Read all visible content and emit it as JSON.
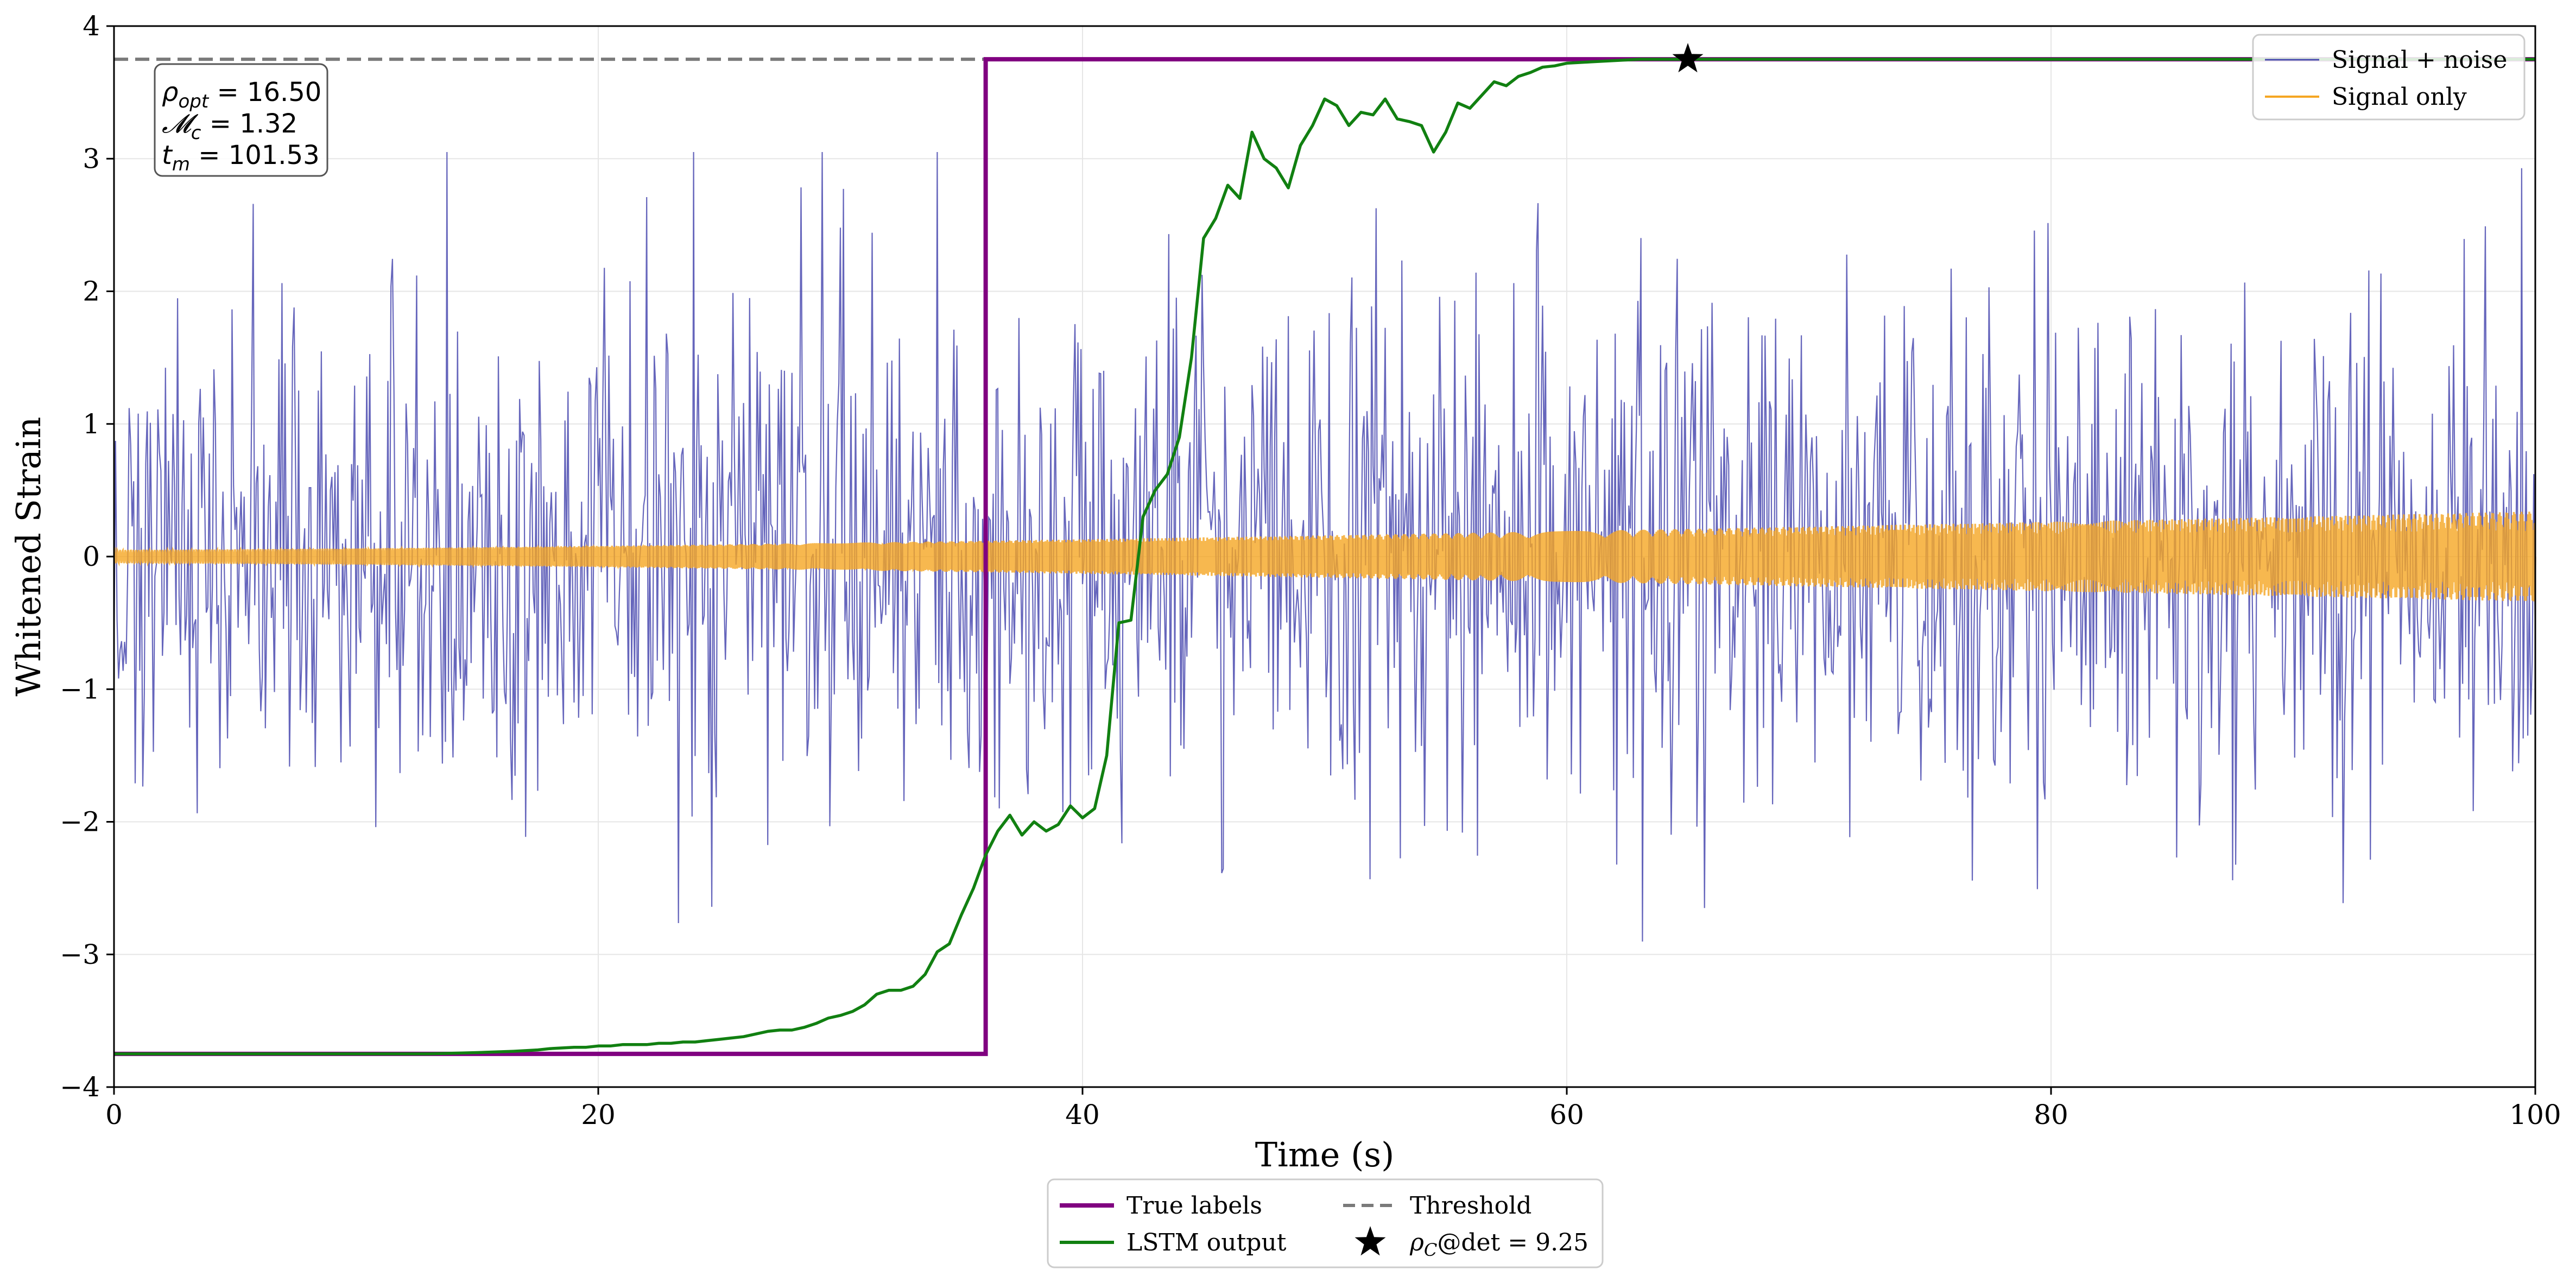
{
  "chart_data": {
    "type": "line",
    "xlabel": "Time (s)",
    "ylabel": "Whitened Strain",
    "xlim": [
      0,
      100
    ],
    "ylim": [
      -4,
      4
    ],
    "xticks": [
      0,
      20,
      40,
      60,
      80,
      100
    ],
    "xtick_labels": [
      "0",
      "20",
      "40",
      "60",
      "80",
      "100"
    ],
    "yticks": [
      -4,
      -3,
      -2,
      -1,
      0,
      1,
      2,
      3,
      4
    ],
    "ytick_labels": [
      "−4",
      "−3",
      "−2",
      "−1",
      "0",
      "1",
      "2",
      "3",
      "4"
    ],
    "grid": true,
    "colors": {
      "signal_noise": "#4b4bb0",
      "signal_only": "#f5a623",
      "true_labels": "#800080",
      "lstm": "#118011",
      "threshold": "#7a7a7a",
      "star": "#000000"
    },
    "series": [
      {
        "name": "Signal + noise",
        "kind": "noise",
        "x_range": [
          0,
          100
        ],
        "samples": 1600,
        "std": 1.0,
        "clip": [
          -3.8,
          3.05
        ]
      },
      {
        "name": "Signal only",
        "kind": "chirp",
        "x_range": [
          0,
          100
        ],
        "amplitude_start": 0.05,
        "amplitude_end": 0.34
      },
      {
        "name": "True labels",
        "kind": "step",
        "x": [
          0,
          36,
          36,
          100
        ],
        "y": [
          -3.75,
          -3.75,
          3.75,
          3.75
        ]
      },
      {
        "name": "LSTM output",
        "kind": "line",
        "x": [
          0,
          13,
          15,
          16.5,
          17.5,
          18,
          19,
          19.5,
          20,
          20.5,
          21,
          21.5,
          22,
          22.5,
          23,
          23.5,
          24,
          24.5,
          25,
          25.5,
          26,
          26.5,
          27,
          27.5,
          28,
          28.5,
          29,
          29.5,
          30,
          30.5,
          31,
          31.5,
          32,
          32.5,
          33,
          33.5,
          34,
          34.5,
          35,
          35.5,
          36,
          36.5,
          37,
          37.5,
          38,
          38.5,
          39,
          39.5,
          40,
          40.5,
          41,
          41.5,
          42,
          42.5,
          43,
          43.5,
          44,
          44.5,
          45,
          45.5,
          46,
          46.5,
          47,
          47.5,
          48,
          48.5,
          49,
          49.5,
          50,
          50.5,
          51,
          51.5,
          52,
          52.5,
          53,
          53.5,
          54,
          54.5,
          55,
          55.5,
          56,
          56.5,
          57,
          57.5,
          58,
          58.5,
          59,
          59.5,
          60,
          61,
          62,
          63,
          64,
          65,
          100
        ],
        "y": [
          -3.75,
          -3.75,
          -3.74,
          -3.73,
          -3.72,
          -3.71,
          -3.7,
          -3.7,
          -3.69,
          -3.69,
          -3.68,
          -3.68,
          -3.68,
          -3.67,
          -3.67,
          -3.66,
          -3.66,
          -3.65,
          -3.64,
          -3.63,
          -3.62,
          -3.6,
          -3.58,
          -3.57,
          -3.57,
          -3.55,
          -3.52,
          -3.48,
          -3.46,
          -3.43,
          -3.38,
          -3.3,
          -3.27,
          -3.27,
          -3.24,
          -3.15,
          -2.98,
          -2.92,
          -2.7,
          -2.5,
          -2.25,
          -2.07,
          -1.95,
          -2.1,
          -2.0,
          -2.07,
          -2.02,
          -1.88,
          -1.97,
          -1.9,
          -1.5,
          -0.5,
          -0.48,
          0.3,
          0.5,
          0.62,
          0.9,
          1.5,
          2.4,
          2.55,
          2.8,
          2.7,
          3.2,
          3.0,
          2.93,
          2.78,
          3.1,
          3.25,
          3.45,
          3.4,
          3.25,
          3.35,
          3.33,
          3.45,
          3.3,
          3.28,
          3.25,
          3.05,
          3.2,
          3.42,
          3.38,
          3.48,
          3.58,
          3.55,
          3.62,
          3.65,
          3.69,
          3.7,
          3.72,
          3.73,
          3.74,
          3.75,
          3.75,
          3.75,
          3.75
        ]
      },
      {
        "name": "Threshold",
        "kind": "hline",
        "y": 3.75
      }
    ],
    "detection_marker": {
      "x": 65,
      "y": 3.75,
      "label": "ρ_C@det = 9.25"
    },
    "annotation": {
      "lines": [
        {
          "main": "ρ",
          "sub": "opt",
          "value": " = 16.50"
        },
        {
          "main": "𝓜",
          "sub": "c",
          "value": " = 1.32"
        },
        {
          "main": "t",
          "sub": "m",
          "value": " = 101.53"
        }
      ]
    },
    "legend_upper": {
      "placement": "top-right",
      "entries": [
        {
          "label": "Signal + noise",
          "series": "signal_noise"
        },
        {
          "label": "Signal only",
          "series": "signal_only"
        }
      ]
    },
    "legend_lower": {
      "placement": "bottom-center",
      "entries": [
        {
          "label": "True labels",
          "series": "true_labels"
        },
        {
          "label": "Threshold",
          "series": "threshold"
        },
        {
          "label": "LSTM output",
          "series": "lstm"
        },
        {
          "label": "ρ_C@det = 9.25",
          "series": "star"
        }
      ]
    }
  }
}
